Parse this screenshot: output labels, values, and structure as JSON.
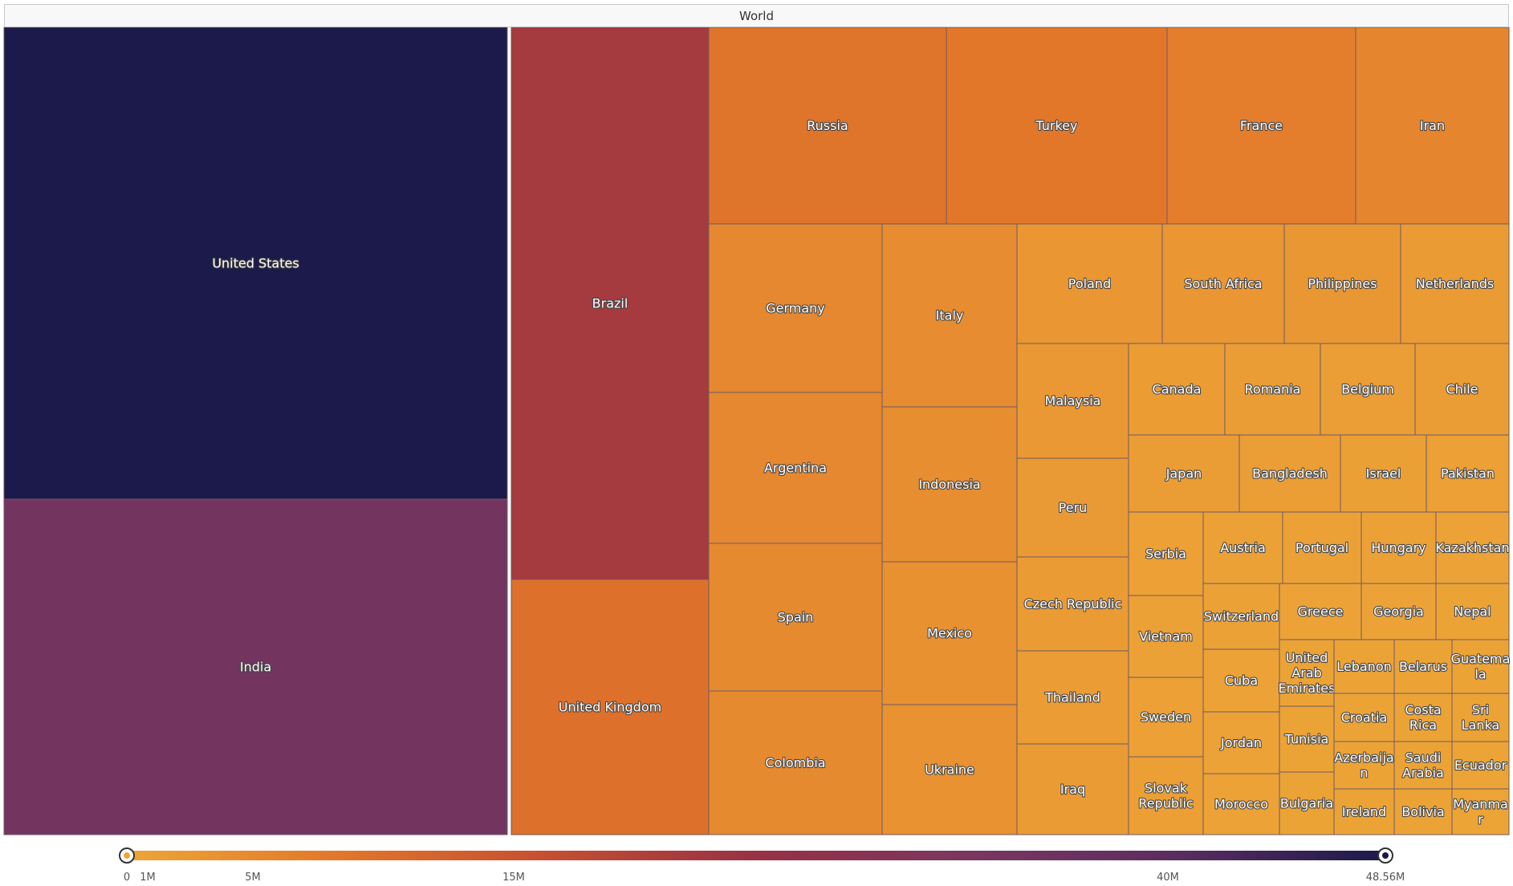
{
  "header": {
    "title": "World"
  },
  "chart_data": {
    "type": "treemap",
    "root_label": "World",
    "colorscale": [
      "#eda637",
      "#e2772a",
      "#c44f31",
      "#973145",
      "#7b3660",
      "#5b2d60",
      "#1c1a4a"
    ],
    "color_range": [
      0,
      48560000
    ],
    "colorbar_ticks": [
      {
        "value": 0,
        "label": "0"
      },
      {
        "value": 1000000,
        "label": "1M"
      },
      {
        "value": 5000000,
        "label": "5M"
      },
      {
        "value": 15000000,
        "label": "15M"
      },
      {
        "value": 40000000,
        "label": "40M"
      },
      {
        "value": 48560000,
        "label": "48.56M"
      }
    ],
    "items": [
      {
        "label": "United States",
        "value": 48560000
      },
      {
        "label": "India",
        "value": 34400000
      },
      {
        "label": "Brazil",
        "value": 21800000
      },
      {
        "label": "United Kingdom",
        "value": 9600000
      },
      {
        "label": "Russia",
        "value": 8900000
      },
      {
        "label": "Turkey",
        "value": 8300000
      },
      {
        "label": "France",
        "value": 7100000
      },
      {
        "label": "Iran",
        "value": 5800000
      },
      {
        "label": "Germany",
        "value": 5300000
      },
      {
        "label": "Argentina",
        "value": 5300000
      },
      {
        "label": "Spain",
        "value": 5000000
      },
      {
        "label": "Colombia",
        "value": 5000000
      },
      {
        "label": "Italy",
        "value": 4700000
      },
      {
        "label": "Indonesia",
        "value": 4200000
      },
      {
        "label": "Mexico",
        "value": 3800000
      },
      {
        "label": "Ukraine",
        "value": 3600000
      },
      {
        "label": "Poland",
        "value": 2900000
      },
      {
        "label": "South Africa",
        "value": 2900000
      },
      {
        "label": "Philippines",
        "value": 2800000
      },
      {
        "label": "Netherlands",
        "value": 2100000
      },
      {
        "label": "Malaysia",
        "value": 2500000
      },
      {
        "label": "Peru",
        "value": 2200000
      },
      {
        "label": "Czech Republic",
        "value": 2000000
      },
      {
        "label": "Thailand",
        "value": 1950000
      },
      {
        "label": "Iraq",
        "value": 2050000
      },
      {
        "label": "Canada",
        "value": 1750000
      },
      {
        "label": "Romania",
        "value": 1700000
      },
      {
        "label": "Belgium",
        "value": 1600000
      },
      {
        "label": "Chile",
        "value": 1650000
      },
      {
        "label": "Japan",
        "value": 1700000
      },
      {
        "label": "Bangladesh",
        "value": 1560000
      },
      {
        "label": "Israel",
        "value": 1300000
      },
      {
        "label": "Pakistan",
        "value": 1280000
      },
      {
        "label": "Serbia",
        "value": 1200000
      },
      {
        "label": "Vietnam",
        "value": 1100000
      },
      {
        "label": "Sweden",
        "value": 1150000
      },
      {
        "label": "Slovak Republic",
        "value": 1400000
      },
      {
        "label": "Austria",
        "value": 1090000
      },
      {
        "label": "Switzerland",
        "value": 1000000
      },
      {
        "label": "Cuba",
        "value": 950000
      },
      {
        "label": "Jordan",
        "value": 900000
      },
      {
        "label": "Morocco",
        "value": 950000
      },
      {
        "label": "Portugal",
        "value": 1090000
      },
      {
        "label": "Hungary",
        "value": 1000000
      },
      {
        "label": "Kazakhstan",
        "value": 960000
      },
      {
        "label": "Greece",
        "value": 790000
      },
      {
        "label": "Georgia",
        "value": 750000
      },
      {
        "label": "Nepal",
        "value": 720000
      },
      {
        "label": "United Arab Emirates",
        "value": 740000
      },
      {
        "label": "Tunisia",
        "value": 710000
      },
      {
        "label": "Bulgaria",
        "value": 720000
      },
      {
        "label": "Lebanon",
        "value": 640000
      },
      {
        "label": "Belarus",
        "value": 620000
      },
      {
        "label": "Guatemala",
        "value": 580000
      },
      {
        "label": "Croatia",
        "value": 560000
      },
      {
        "label": "Costa Rica",
        "value": 560000
      },
      {
        "label": "Sri Lanka",
        "value": 560000
      },
      {
        "label": "Azerbaijan",
        "value": 570000
      },
      {
        "label": "Saudi Arabia",
        "value": 550000
      },
      {
        "label": "Ecuador",
        "value": 520000
      },
      {
        "label": "Ireland",
        "value": 600000
      },
      {
        "label": "Bolivia",
        "value": 580000
      },
      {
        "label": "Myanmar",
        "value": 530000
      }
    ]
  }
}
